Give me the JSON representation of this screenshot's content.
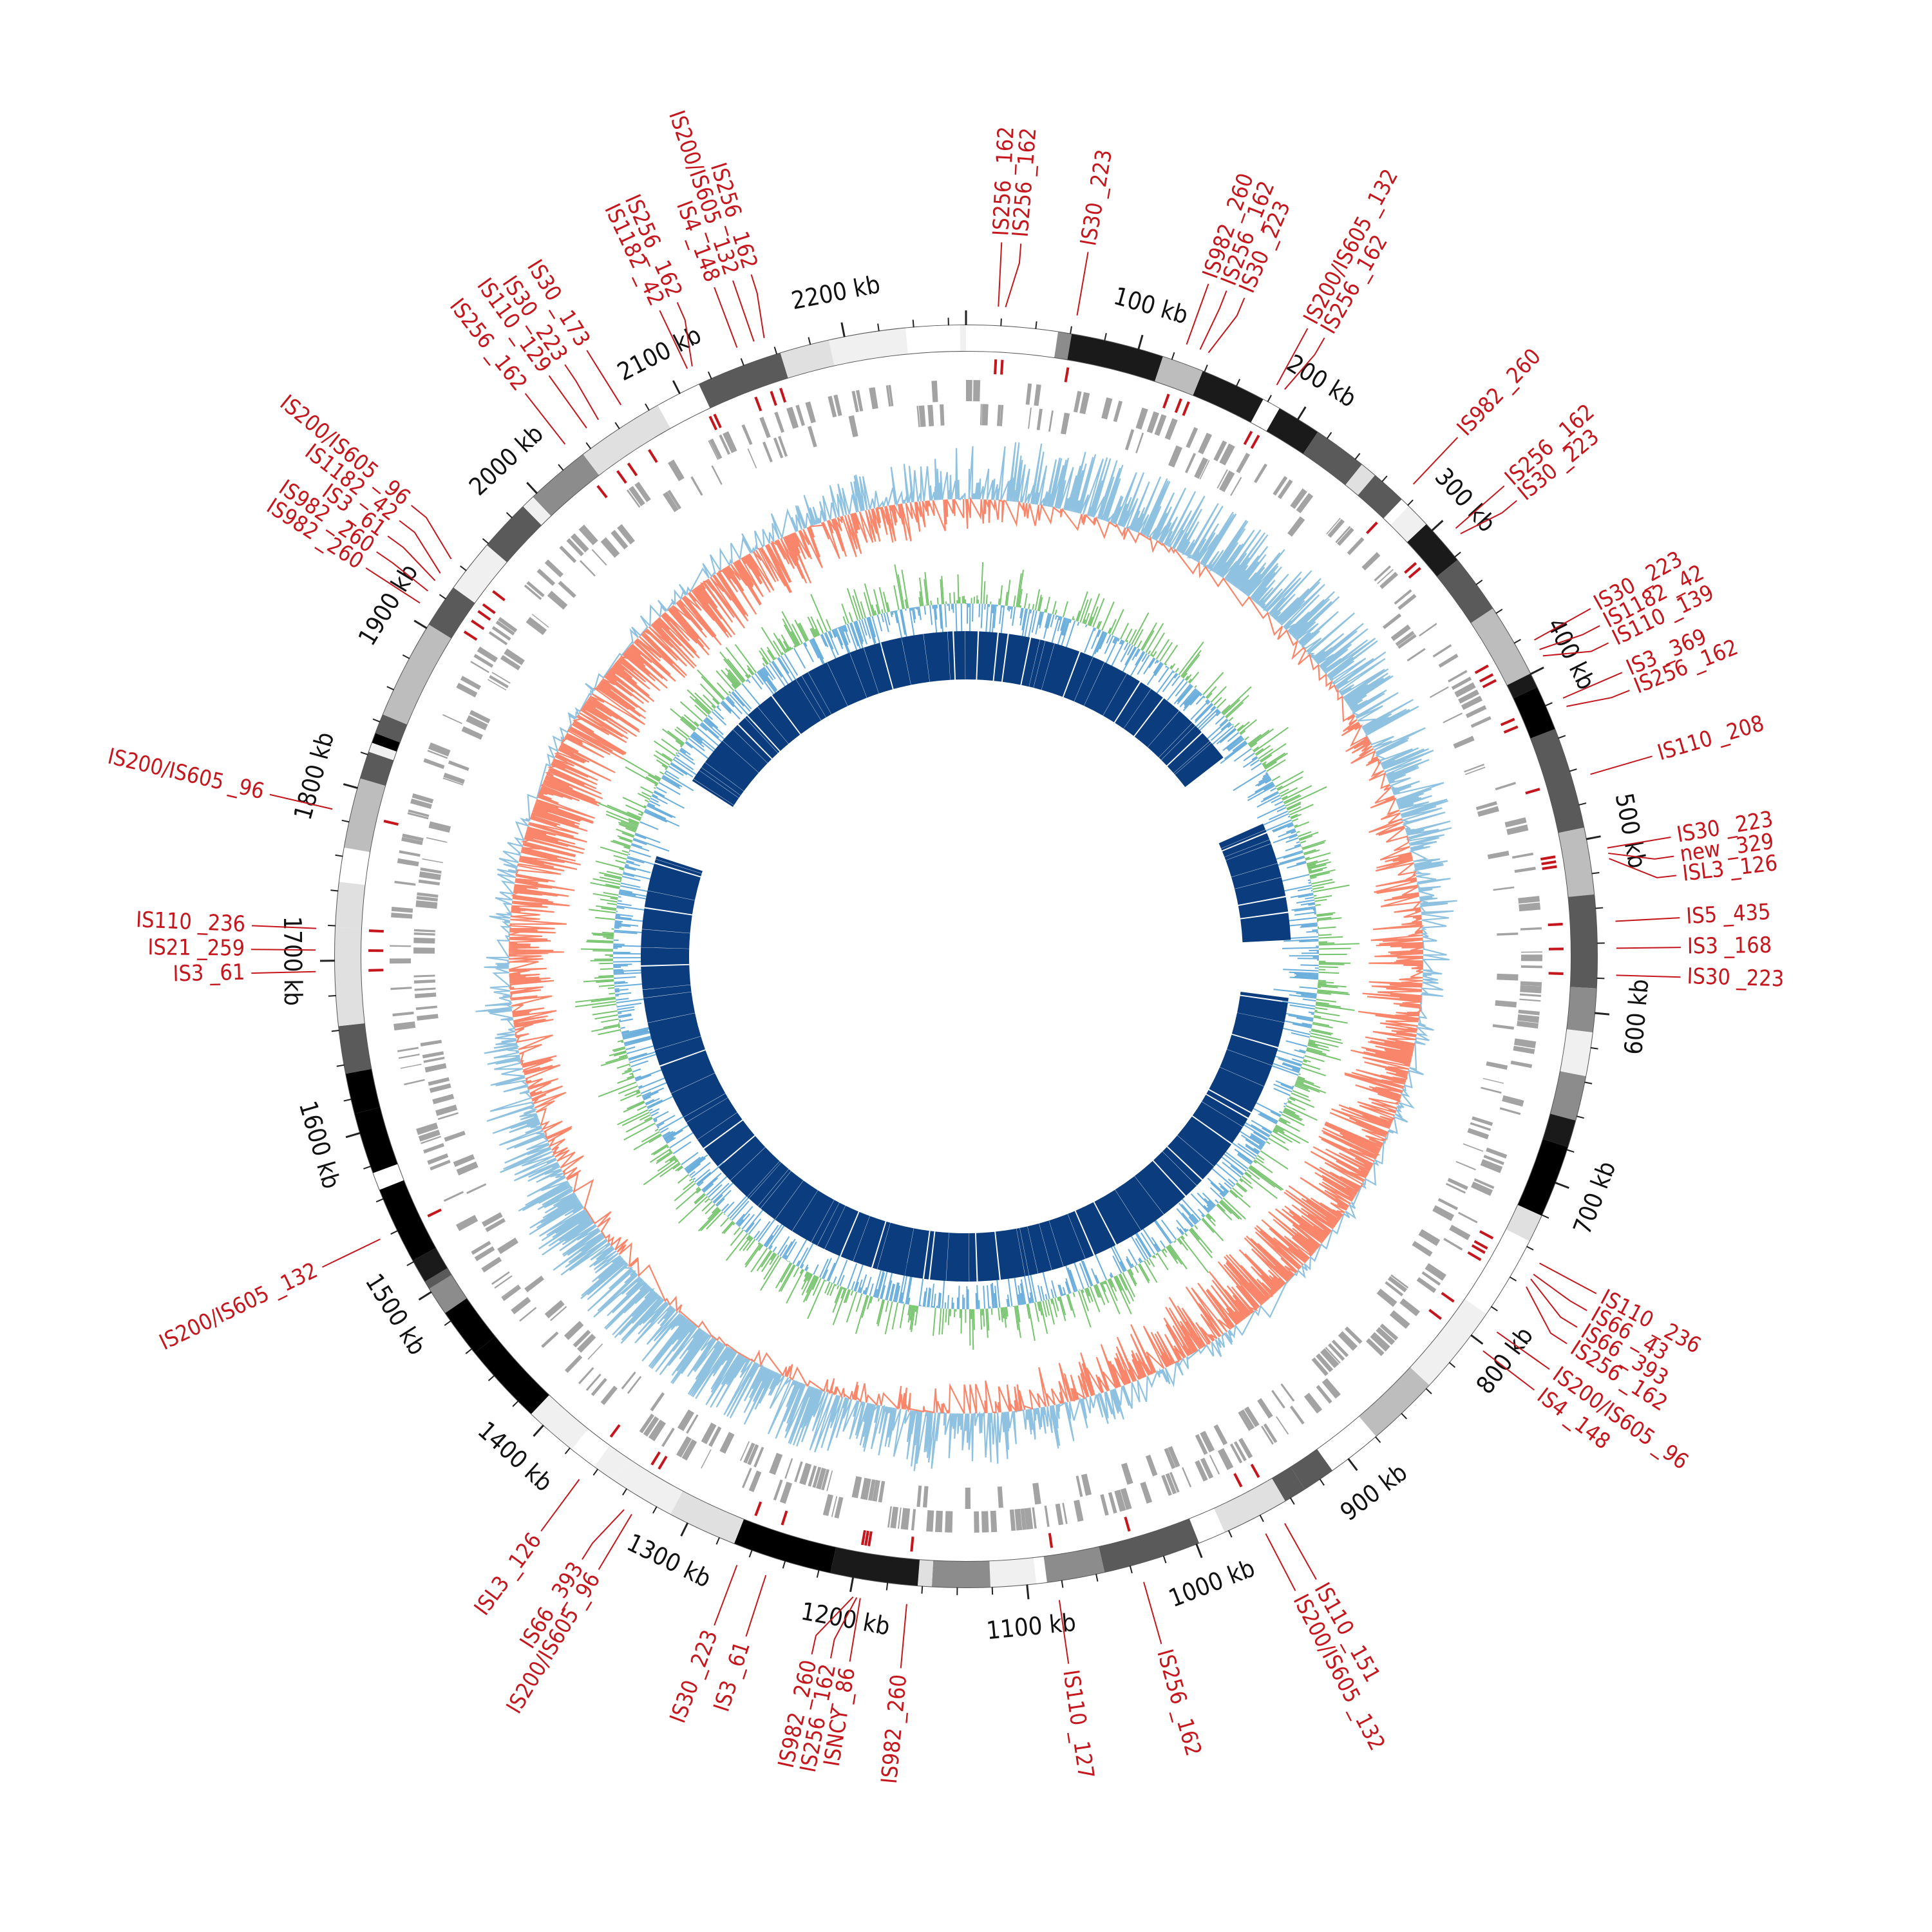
{
  "colors": {
    "is_element": "#c4161c",
    "cds_track": "#a3a3a3",
    "gc_skew_positive": "#f9866a",
    "gc_skew_negative": "#8fc2e0",
    "gc_content_positive": "#77c46f",
    "gc_content_negative": "#6aaedc",
    "homology_track": "#0b3d7e",
    "scale_text": "#111111"
  },
  "genome": {
    "length_kb": 2270
  },
  "scale_labels": [
    {
      "kb": 100,
      "text": "100 kb"
    },
    {
      "kb": 200,
      "text": "200 kb"
    },
    {
      "kb": 300,
      "text": "300 kb"
    },
    {
      "kb": 400,
      "text": "400 kb"
    },
    {
      "kb": 500,
      "text": "500 kb"
    },
    {
      "kb": 600,
      "text": "600 kb"
    },
    {
      "kb": 700,
      "text": "700 kb"
    },
    {
      "kb": 800,
      "text": "800 kb"
    },
    {
      "kb": 900,
      "text": "900 kb"
    },
    {
      "kb": 1000,
      "text": "1000 kb"
    },
    {
      "kb": 1100,
      "text": "1100 kb"
    },
    {
      "kb": 1200,
      "text": "1200 kb"
    },
    {
      "kb": 1300,
      "text": "1300 kb"
    },
    {
      "kb": 1400,
      "text": "1400 kb"
    },
    {
      "kb": 1500,
      "text": "1500 kb"
    },
    {
      "kb": 1600,
      "text": "1600 kb"
    },
    {
      "kb": 1700,
      "text": "1700 kb"
    },
    {
      "kb": 1800,
      "text": "1800 kb"
    },
    {
      "kb": 1900,
      "text": "1900 kb"
    },
    {
      "kb": 2000,
      "text": "2000 kb"
    },
    {
      "kb": 2100,
      "text": "2100 kb"
    },
    {
      "kb": 2200,
      "text": "2200 kb"
    }
  ],
  "is_elements": [
    {
      "kb": 18,
      "label": "IS256 _162"
    },
    {
      "kb": 22,
      "label": "IS256 _162"
    },
    {
      "kb": 62,
      "label": "IS30 _223"
    },
    {
      "kb": 125,
      "label": "IS982 _260"
    },
    {
      "kb": 133,
      "label": "IS256 _162"
    },
    {
      "kb": 138,
      "label": "IS30 _223"
    },
    {
      "kb": 180,
      "label": "IS200/IS605 _132"
    },
    {
      "kb": 185,
      "label": "IS256 _162"
    },
    {
      "kb": 274,
      "label": "IS982 _260"
    },
    {
      "kb": 308,
      "label": "IS256 _162"
    },
    {
      "kb": 312,
      "label": "IS30 _223"
    },
    {
      "kb": 384,
      "label": "IS30 _223"
    },
    {
      "kb": 390,
      "label": "IS1182 _42"
    },
    {
      "kb": 394,
      "label": "IS110 _139"
    },
    {
      "kb": 420,
      "label": "IS3 _369"
    },
    {
      "kb": 425,
      "label": "IS256 _162"
    },
    {
      "kb": 465,
      "label": "IS110 _208"
    },
    {
      "kb": 507,
      "label": "IS30 _223"
    },
    {
      "kb": 510,
      "label": "new _329"
    },
    {
      "kb": 513,
      "label": "ISL3 _126"
    },
    {
      "kb": 548,
      "label": "IS5 _435"
    },
    {
      "kb": 563,
      "label": "IS3 _168"
    },
    {
      "kb": 578,
      "label": "IS30 _223"
    },
    {
      "kb": 745,
      "label": "IS110 _236"
    },
    {
      "kb": 752,
      "label": "IS66 _43"
    },
    {
      "kb": 755,
      "label": "IS66 _393"
    },
    {
      "kb": 760,
      "label": "IS256 _162"
    },
    {
      "kb": 790,
      "label": "IS200/IS605 _96"
    },
    {
      "kb": 803,
      "label": "IS4 _148"
    },
    {
      "kb": 950,
      "label": "IS110 _151"
    },
    {
      "kb": 962,
      "label": "IS200/IS605 _132"
    },
    {
      "kb": 1035,
      "label": "IS256 _162"
    },
    {
      "kb": 1083,
      "label": "IS110 _127"
    },
    {
      "kb": 1168,
      "label": "IS982 _260"
    },
    {
      "kb": 1194,
      "label": "ISNCY _86"
    },
    {
      "kb": 1196,
      "label": "IS256 _162"
    },
    {
      "kb": 1198,
      "label": "IS982 _260"
    },
    {
      "kb": 1248,
      "label": "IS3 _61"
    },
    {
      "kb": 1265,
      "label": "IS30 _223"
    },
    {
      "kb": 1330,
      "label": "IS200/IS605 _96"
    },
    {
      "kb": 1335,
      "label": "IS66 _393"
    },
    {
      "kb": 1365,
      "label": "ISL3 _126"
    },
    {
      "kb": 1540,
      "label": "IS200/IS605 _132"
    },
    {
      "kb": 1694,
      "label": "IS3 _61"
    },
    {
      "kb": 1706,
      "label": "IS21 _259"
    },
    {
      "kb": 1718,
      "label": "IS110 _236"
    },
    {
      "kb": 1785,
      "label": "IS200/IS605 _96"
    },
    {
      "kb": 1910,
      "label": "IS982 _260"
    },
    {
      "kb": 1918,
      "label": "IS982 _260"
    },
    {
      "kb": 1925,
      "label": "IS3 _61"
    },
    {
      "kb": 1930,
      "label": "IS1182 _42"
    },
    {
      "kb": 1940,
      "label": "IS200/IS605 _96"
    },
    {
      "kb": 2030,
      "label": "IS256 _162"
    },
    {
      "kb": 2045,
      "label": "IS110 _129"
    },
    {
      "kb": 2053,
      "label": "IS30 _223"
    },
    {
      "kb": 2068,
      "label": "IS30 _173"
    },
    {
      "kb": 2110,
      "label": "IS1182 _42"
    },
    {
      "kb": 2113,
      "label": "IS256 _162"
    },
    {
      "kb": 2140,
      "label": "IS4 _148"
    },
    {
      "kb": 2150,
      "label": "IS200/IS605 _132"
    },
    {
      "kb": 2156,
      "label": "IS256 _162"
    }
  ]
}
